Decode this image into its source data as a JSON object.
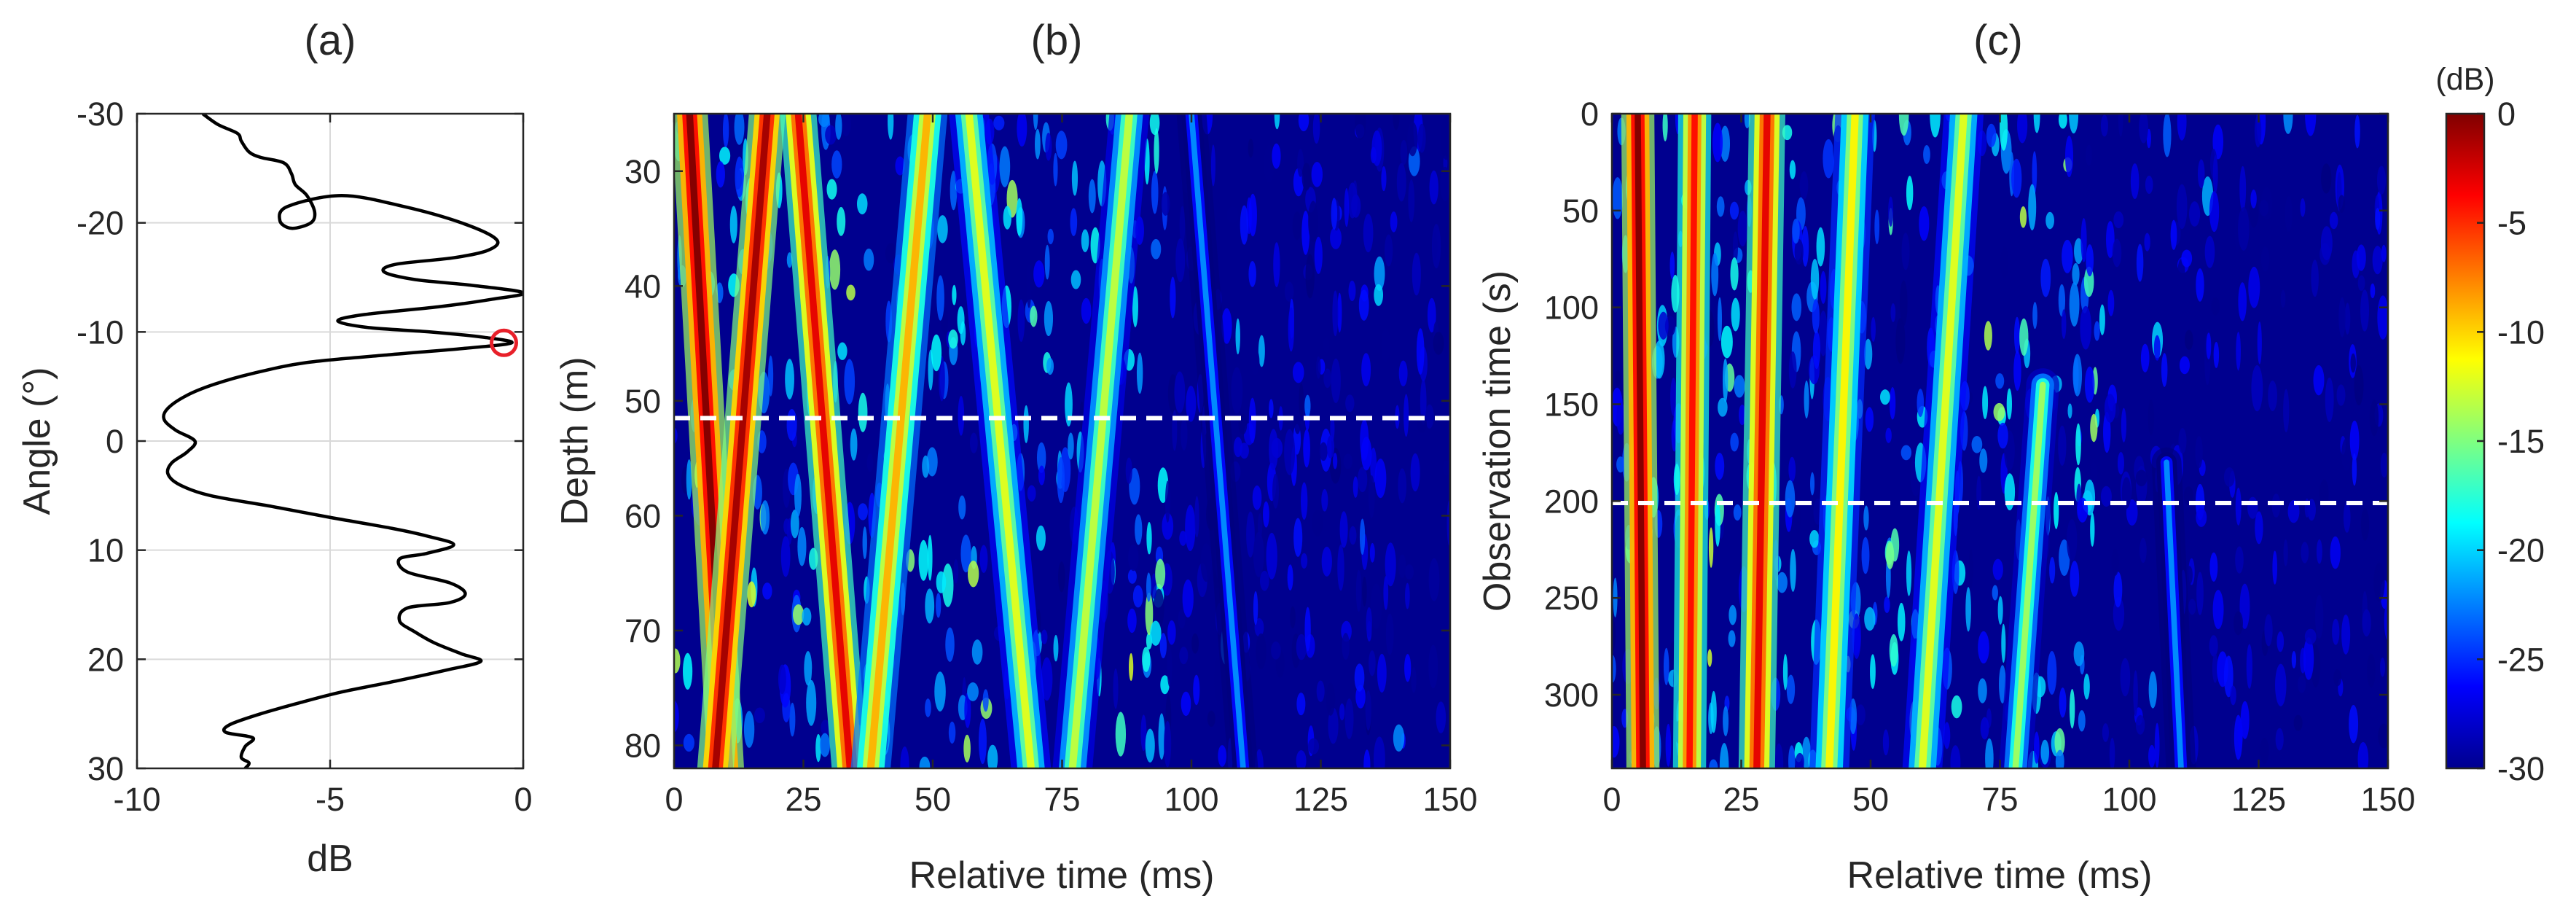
{
  "colors": {
    "curve": "#000000",
    "marker": "#e8202a",
    "grid": "#d9d9d9",
    "axis": "#262626",
    "dashed_line": "#ffffff",
    "colormap": "jet",
    "background_level": "#00008f"
  },
  "chart_data": [
    {
      "type": "line",
      "panel_label": "(a)",
      "xlabel": "dB",
      "ylabel": "Angle (°)",
      "xlim": [
        -10,
        0
      ],
      "ylim": [
        -30,
        30
      ],
      "y_reversed": true,
      "grid": true,
      "xticks": [
        "-10",
        "-5",
        "0"
      ],
      "yticks": [
        "-30",
        "-20",
        "-10",
        "0",
        "10",
        "20",
        "30"
      ],
      "series": [
        {
          "points": [
            [
              -8.3,
              -30
            ],
            [
              -7.9,
              -29
            ],
            [
              -7.4,
              -28.2
            ],
            [
              -7.3,
              -27.5
            ],
            [
              -7.1,
              -26.5
            ],
            [
              -6.8,
              -26
            ],
            [
              -6.2,
              -25.5
            ],
            [
              -6.0,
              -24.5
            ],
            [
              -5.9,
              -23.5
            ],
            [
              -5.6,
              -22.5
            ],
            [
              -5.4,
              -21
            ],
            [
              -5.5,
              -20
            ],
            [
              -6.0,
              -19.5
            ],
            [
              -6.3,
              -20.2
            ],
            [
              -6.1,
              -21.5
            ],
            [
              -4.7,
              -22.5
            ],
            [
              -3.1,
              -21.5
            ],
            [
              -1.6,
              -20
            ],
            [
              -0.7,
              -18.5
            ],
            [
              -0.9,
              -17.5
            ],
            [
              -1.8,
              -16.8
            ],
            [
              -3.3,
              -16.2
            ],
            [
              -3.6,
              -15.5
            ],
            [
              -2.8,
              -14.8
            ],
            [
              -1.4,
              -14.3
            ],
            [
              0.0,
              -13.6
            ],
            [
              -0.8,
              -13.0
            ],
            [
              -2.2,
              -12.3
            ],
            [
              -4.1,
              -11.6
            ],
            [
              -4.8,
              -11.0
            ],
            [
              -4.0,
              -10.4
            ],
            [
              -2.4,
              -10.0
            ],
            [
              -1.0,
              -9.5
            ],
            [
              -0.3,
              -9.0
            ],
            [
              -1.5,
              -8.5
            ],
            [
              -3.5,
              -7.9
            ],
            [
              -5.6,
              -7.2
            ],
            [
              -7.0,
              -6.2
            ],
            [
              -8.0,
              -5.2
            ],
            [
              -8.7,
              -4.2
            ],
            [
              -9.2,
              -3.0
            ],
            [
              -9.3,
              -2.0
            ],
            [
              -9.0,
              -1.0
            ],
            [
              -8.5,
              0.0
            ],
            [
              -8.7,
              1.0
            ],
            [
              -9.1,
              2.0
            ],
            [
              -9.2,
              3.0
            ],
            [
              -8.9,
              4.0
            ],
            [
              -8.1,
              5.0
            ],
            [
              -6.5,
              6.0
            ],
            [
              -5.0,
              7.0
            ],
            [
              -3.4,
              8.0
            ],
            [
              -2.5,
              8.7
            ],
            [
              -1.8,
              9.5
            ],
            [
              -2.5,
              10.3
            ],
            [
              -3.2,
              10.8
            ],
            [
              -3.0,
              12.0
            ],
            [
              -1.9,
              13.0
            ],
            [
              -1.5,
              14.0
            ],
            [
              -1.9,
              14.8
            ],
            [
              -3.0,
              15.3
            ],
            [
              -3.2,
              16.5
            ],
            [
              -2.8,
              17.5
            ],
            [
              -2.3,
              18.5
            ],
            [
              -1.6,
              19.5
            ],
            [
              -1.1,
              20.2
            ],
            [
              -2.0,
              21.0
            ],
            [
              -3.3,
              22.0
            ],
            [
              -4.7,
              23.0
            ],
            [
              -5.8,
              24.0
            ],
            [
              -6.8,
              25.0
            ],
            [
              -7.6,
              26.0
            ],
            [
              -7.7,
              26.7
            ],
            [
              -7.0,
              27.2
            ],
            [
              -7.2,
              28.0
            ],
            [
              -7.3,
              29.0
            ],
            [
              -7.1,
              29.5
            ],
            [
              -7.2,
              30.0
            ]
          ]
        }
      ],
      "marker": {
        "x": -0.5,
        "y": -9,
        "shape": "circle"
      }
    },
    {
      "type": "heatmap",
      "panel_label": "(b)",
      "xlabel": "Relative time (ms)",
      "ylabel": "Depth (m)",
      "xlim": [
        0,
        150
      ],
      "ylim": [
        25,
        82
      ],
      "y_reversed": true,
      "xticks": [
        "0",
        "25",
        "50",
        "75",
        "100",
        "125",
        "150"
      ],
      "yticks": [
        "30",
        "40",
        "50",
        "60",
        "70",
        "80"
      ],
      "dashed_line": {
        "axis": "y",
        "value": 51.5
      },
      "arrivals": [
        {
          "x_start": 3,
          "x_end": 10,
          "width": 2.2,
          "level": 0
        },
        {
          "x_start": 18,
          "x_end": 8,
          "width": 2.2,
          "level": -1
        },
        {
          "x_start": 24,
          "x_end": 34,
          "width": 2.2,
          "level": -3
        },
        {
          "x_start": 49,
          "x_end": 38,
          "width": 2.4,
          "level": -9
        },
        {
          "x_start": 57,
          "x_end": 69,
          "width": 2.4,
          "level": -12
        },
        {
          "x_start": 88,
          "x_end": 77,
          "width": 2.4,
          "level": -13
        },
        {
          "x_start": 100,
          "x_end": 110,
          "width": 1.8,
          "level": -22
        }
      ]
    },
    {
      "type": "heatmap",
      "panel_label": "(c)",
      "xlabel": "Relative time (ms)",
      "ylabel": "Observation time (s)",
      "xlim": [
        0,
        150
      ],
      "ylim": [
        0,
        338
      ],
      "y_reversed": true,
      "xticks": [
        "0",
        "25",
        "50",
        "75",
        "100",
        "125",
        "150"
      ],
      "yticks": [
        "0",
        "50",
        "100",
        "150",
        "200",
        "250",
        "300"
      ],
      "dashed_line": {
        "axis": "y",
        "value": 201
      },
      "arrivals": [
        {
          "x_start": 5,
          "x_end": 6,
          "width": 2.0,
          "level": 0
        },
        {
          "x_start": 16,
          "x_end": 15,
          "width": 2.0,
          "level": -4
        },
        {
          "x_start": 30,
          "x_end": 28,
          "width": 2.2,
          "level": -3
        },
        {
          "x_start": 47,
          "x_end": 42,
          "width": 2.4,
          "level": -11
        },
        {
          "x_start": 68,
          "x_end": 60,
          "width": 2.4,
          "level": -12
        },
        {
          "x_start": 87,
          "x_end": 78,
          "width": 2.0,
          "level": -14,
          "y_from": 140
        },
        {
          "x_start": 104,
          "x_end": 110,
          "width": 1.8,
          "level": -22,
          "y_from": 180
        }
      ]
    }
  ],
  "colorbar": {
    "unit": "(dB)",
    "range": [
      -30,
      0
    ],
    "ticks": [
      "0",
      "-5",
      "-10",
      "-15",
      "-20",
      "-25",
      "-30"
    ]
  }
}
